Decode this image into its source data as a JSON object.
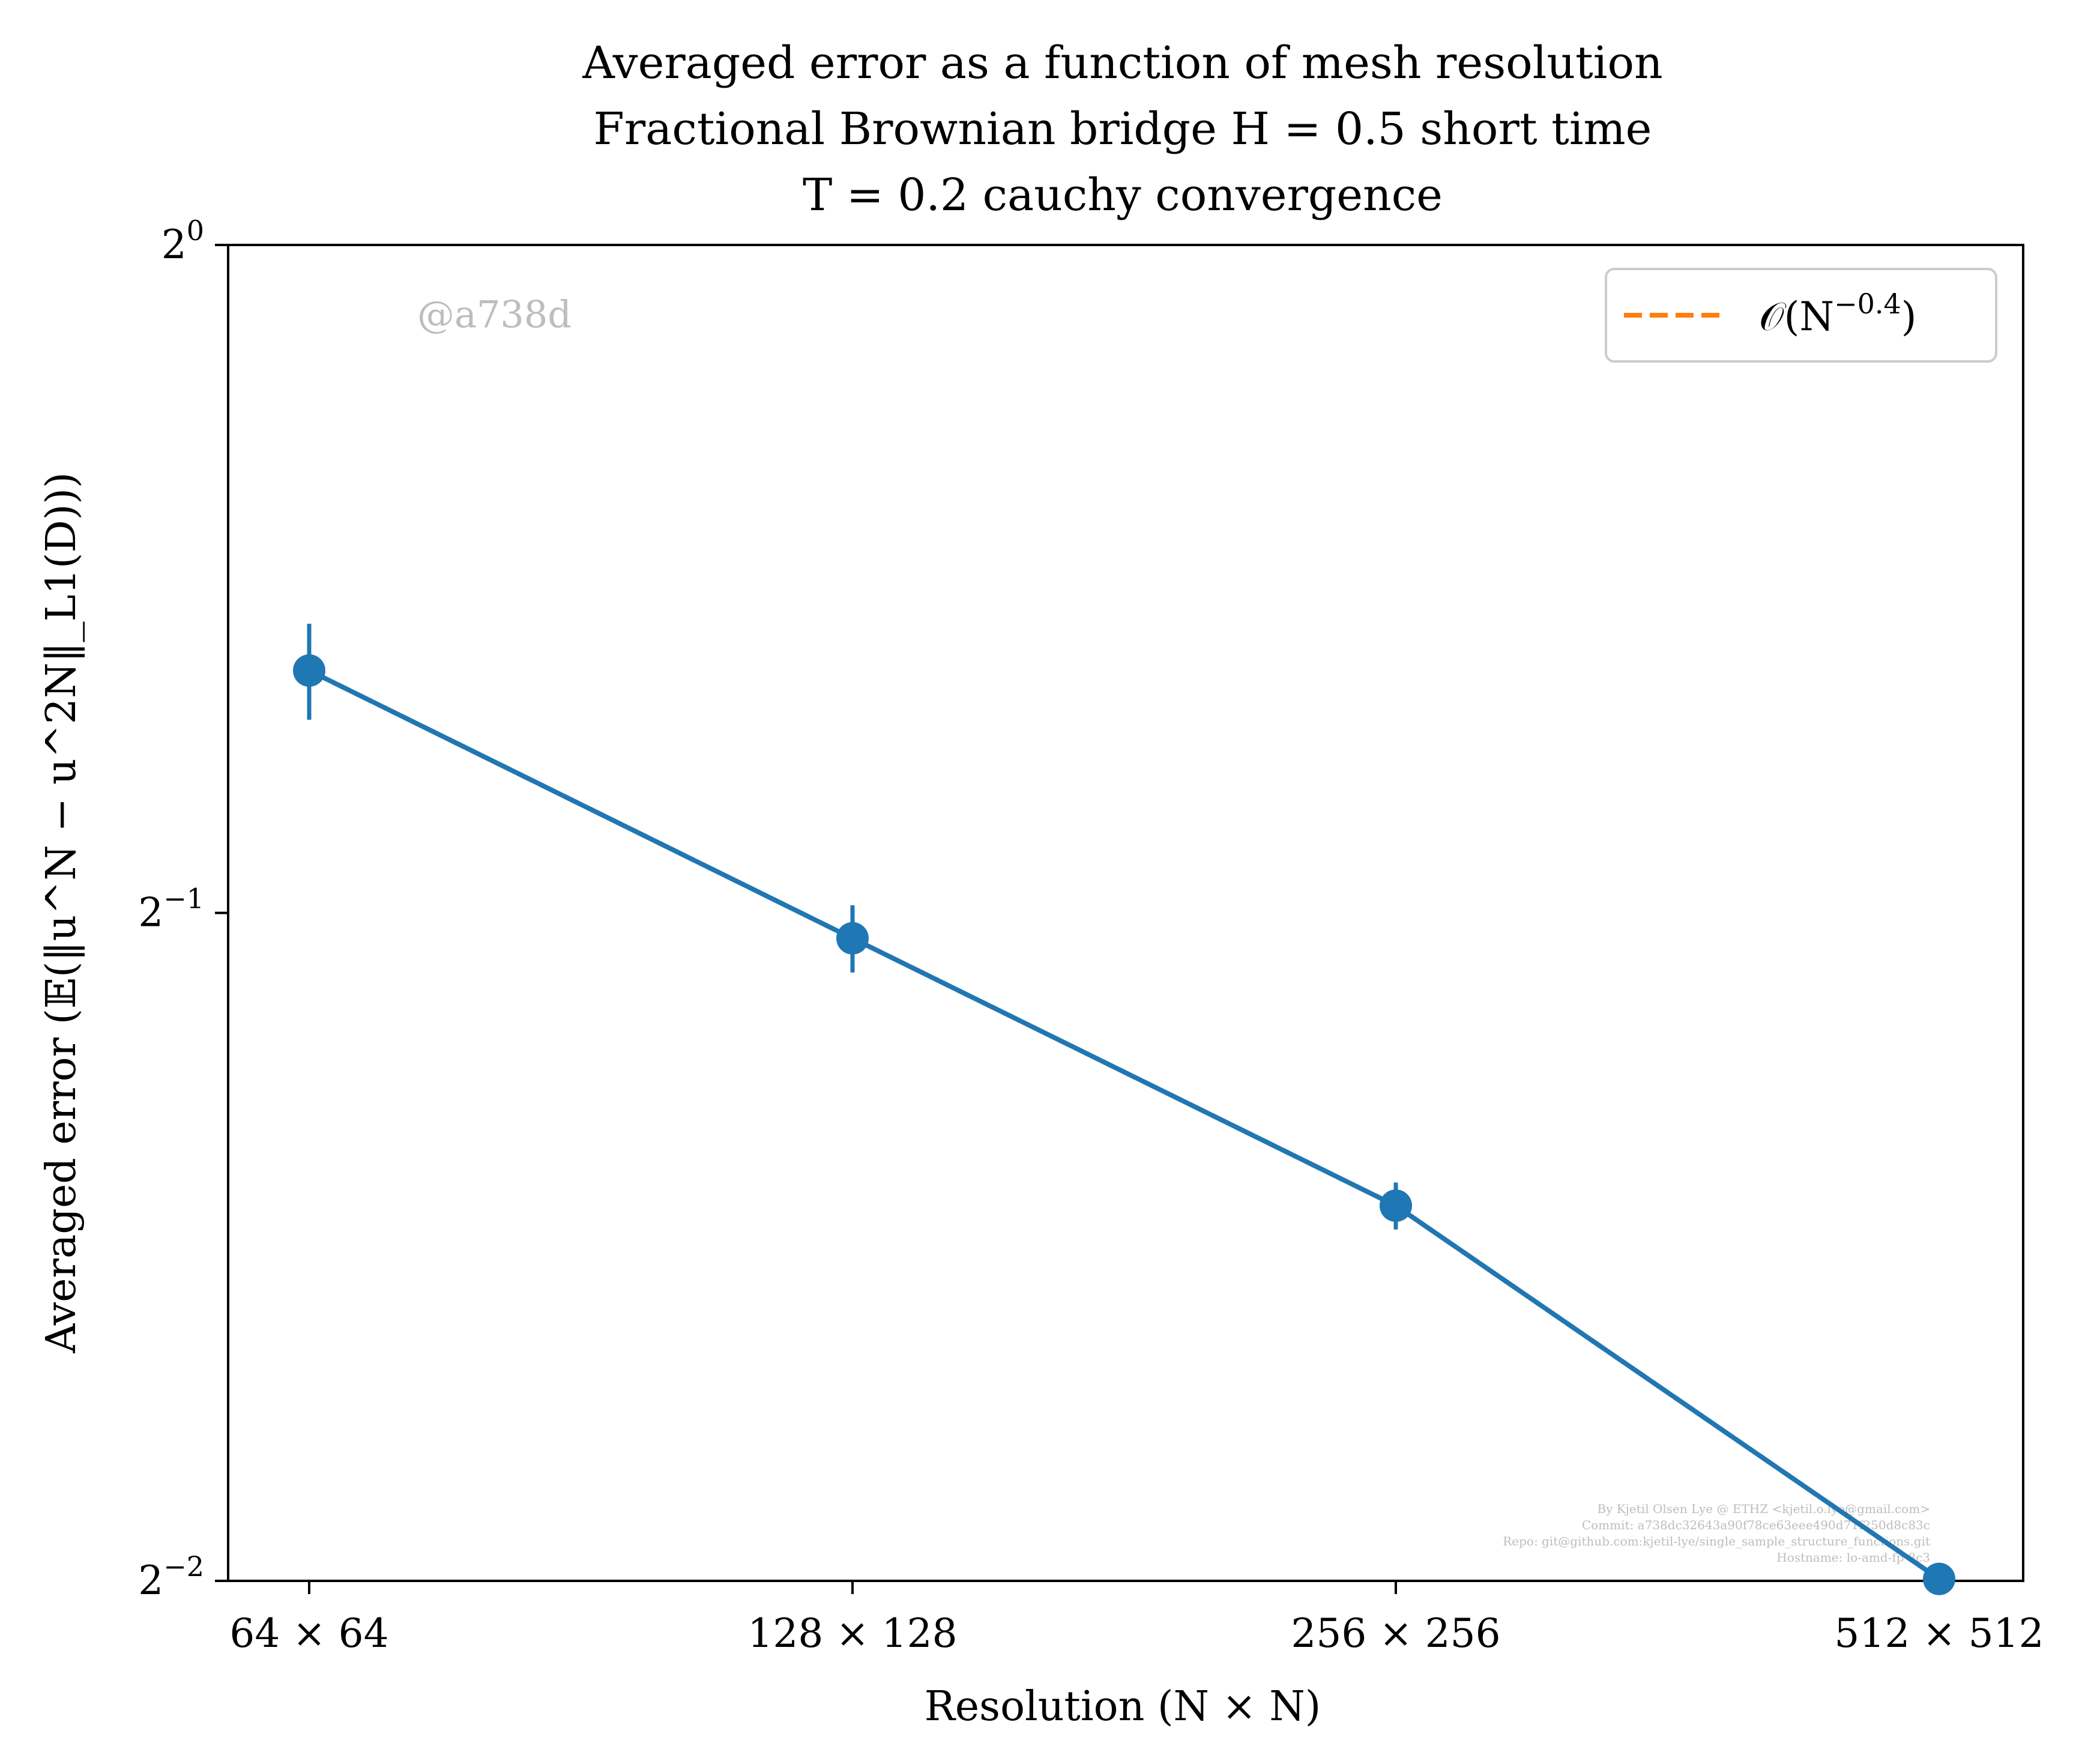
{
  "chart_data": {
    "type": "line",
    "title_lines": [
      "Averaged error as a function of mesh resolution",
      "Fractional Brownian bridge H = 0.5 short time",
      "T = 0.2 cauchy convergence"
    ],
    "xlabel": "Resolution (N × N)",
    "ylabel": "Averaged error (𝔼(‖u^N − u^2N‖_L1(D)))",
    "categories": [
      "64 × 64",
      "128 × 128",
      "256 × 256",
      "512 × 512"
    ],
    "x": [
      64,
      128,
      256,
      512
    ],
    "y_scale": "log2",
    "ylim": [
      0.25,
      1.0
    ],
    "yticks": [
      {
        "value": 1.0,
        "label": "2^0",
        "base": "2",
        "exp": "0"
      },
      {
        "value": 0.5,
        "label": "2^-1",
        "base": "2",
        "exp": "−1"
      },
      {
        "value": 0.25,
        "label": "2^-2",
        "base": "2",
        "exp": "−2"
      }
    ],
    "series": [
      {
        "name": "",
        "color": "#1f77b4",
        "style": "solid-with-markers",
        "values": [
          0.643,
          0.487,
          0.369,
          0.2505
        ],
        "error": [
          0.032,
          0.017,
          0.009,
          0.0
        ]
      },
      {
        "name": "O(N^−0.4)",
        "color": "#ff7f0e",
        "style": "dashed",
        "values": [
          0.643,
          0.487,
          0.369,
          0.2505
        ]
      }
    ],
    "legend": {
      "placement": "top-right",
      "entry_label": "𝒪(N",
      "entry_exp": "−0.4",
      "entry_close": ")"
    },
    "grid": false
  },
  "watermark": "@a738d",
  "credits": [
    "By Kjetil Olsen Lye @ ETHZ <kjetil.o.lye@gmail.com>",
    "Commit: a738dc32643a90f78ce63eee490d71f250d8c83c",
    "Repo: git@github.com:kjetil-lye/single_sample_structure_functions.git",
    "Hostname: lo-amd-fp-8c3"
  ]
}
